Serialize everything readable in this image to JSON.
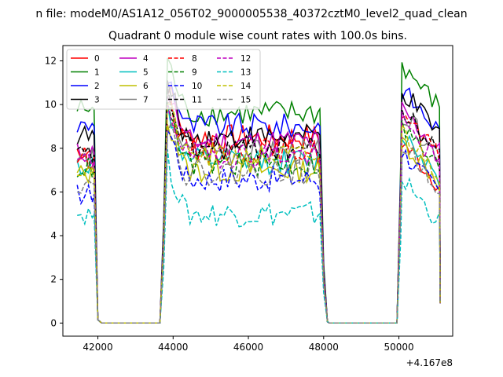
{
  "figure": {
    "suptitle": "n file: modeM0/AS1A12_056T02_9000005538_40372cztM0_level2_quad_clean",
    "title": "Quadrant 0 module wise count rates with 100.0s bins.",
    "x_offset_label": "+4.167e8"
  },
  "chart_data": {
    "type": "line",
    "title": "Quadrant 0 module wise count rates with 100.0s bins.",
    "xlabel": "",
    "ylabel": "",
    "x_offset": 416700000,
    "xlim": [
      41070,
      51430
    ],
    "ylim": [
      -0.6,
      12.7
    ],
    "xticks": [
      42000,
      44000,
      46000,
      48000,
      50000
    ],
    "xtick_labels": [
      "42000",
      "44000",
      "46000",
      "48000",
      "50000"
    ],
    "yticks": [
      0,
      2,
      4,
      6,
      8,
      10,
      12
    ],
    "ytick_labels": [
      "0",
      "2",
      "4",
      "6",
      "8",
      "10",
      "12"
    ],
    "grid": false,
    "legend_position": "top-left",
    "segments": [
      {
        "start": 41450,
        "end": 41900,
        "kind": "active1"
      },
      {
        "start": 41900,
        "end": 42100,
        "kind": "drop"
      },
      {
        "start": 42100,
        "end": 43650,
        "kind": "zero"
      },
      {
        "start": 43650,
        "end": 43850,
        "kind": "rise"
      },
      {
        "start": 43850,
        "end": 47900,
        "kind": "active2"
      },
      {
        "start": 47900,
        "end": 48150,
        "kind": "drop"
      },
      {
        "start": 48150,
        "end": 49950,
        "kind": "zero"
      },
      {
        "start": 49950,
        "end": 50080,
        "kind": "rise"
      },
      {
        "start": 50080,
        "end": 51100,
        "kind": "active3"
      }
    ],
    "series": [
      {
        "name": "0",
        "color": "#ff0000",
        "style": "solid",
        "levels": [
          7.9,
          8.5,
          8.3
        ]
      },
      {
        "name": "1",
        "color": "#008000",
        "style": "solid",
        "levels": [
          9.8,
          9.6,
          11.8
        ]
      },
      {
        "name": "2",
        "color": "#0000ff",
        "style": "solid",
        "levels": [
          9.0,
          9.0,
          10.7
        ]
      },
      {
        "name": "3",
        "color": "#000000",
        "style": "solid",
        "levels": [
          8.6,
          8.5,
          10.6
        ]
      },
      {
        "name": "4",
        "color": "#bf00bf",
        "style": "solid",
        "levels": [
          7.8,
          8.3,
          9.8
        ]
      },
      {
        "name": "5",
        "color": "#00bfbf",
        "style": "solid",
        "levels": [
          7.2,
          7.4,
          8.7
        ]
      },
      {
        "name": "6",
        "color": "#bfbf00",
        "style": "solid",
        "levels": [
          6.8,
          7.0,
          8.4
        ]
      },
      {
        "name": "7",
        "color": "#808080",
        "style": "solid",
        "levels": [
          7.5,
          7.8,
          9.6
        ]
      },
      {
        "name": "8",
        "color": "#ff0000",
        "style": "dashed",
        "levels": [
          7.6,
          7.9,
          9.5
        ]
      },
      {
        "name": "9",
        "color": "#008000",
        "style": "dashed",
        "levels": [
          7.1,
          7.3,
          9.0
        ]
      },
      {
        "name": "10",
        "color": "#0000ff",
        "style": "dashed",
        "levels": [
          5.9,
          6.6,
          7.9
        ]
      },
      {
        "name": "11",
        "color": "#000000",
        "style": "dashed",
        "levels": [
          7.7,
          8.0,
          9.7
        ]
      },
      {
        "name": "12",
        "color": "#bf00bf",
        "style": "dashed",
        "levels": [
          7.4,
          7.7,
          9.2
        ]
      },
      {
        "name": "13",
        "color": "#00bfbf",
        "style": "dashed",
        "levels": [
          5.0,
          5.0,
          6.6
        ]
      },
      {
        "name": "14",
        "color": "#bfbf00",
        "style": "dashed",
        "levels": [
          7.0,
          7.6,
          8.8
        ]
      },
      {
        "name": "15",
        "color": "#808080",
        "style": "dashed",
        "levels": [
          6.4,
          6.9,
          8.2
        ]
      }
    ]
  }
}
